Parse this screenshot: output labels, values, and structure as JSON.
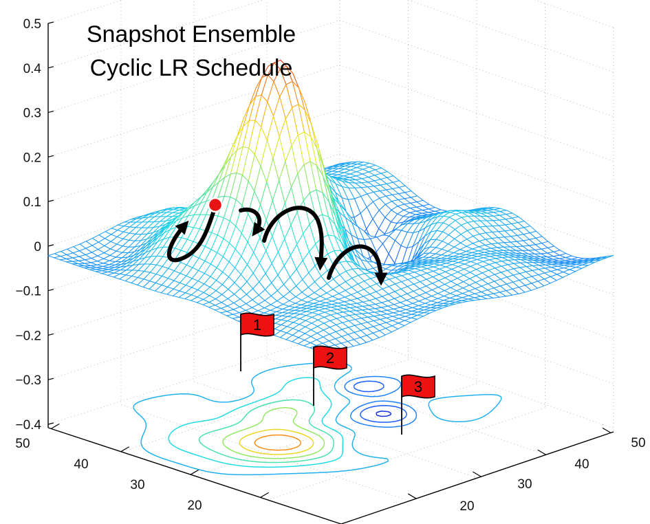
{
  "chart_data": {
    "type": "surface",
    "title": "Snapshot Ensemble",
    "subtitle": "Cyclic LR Schedule",
    "z_ticks": [
      "0.5",
      "0.4",
      "0.3",
      "0.2",
      "0.1",
      "0",
      "−0.1",
      "−0.2",
      "−0.3",
      "−0.4"
    ],
    "zlim": [
      -0.4,
      0.5
    ],
    "x_ticks": [
      "50",
      "40",
      "30",
      "20"
    ],
    "y_ticks": [
      "50",
      "40",
      "30",
      "20"
    ],
    "grid": true,
    "projected_contours": true,
    "flags": [
      {
        "label": "1"
      },
      {
        "label": "2"
      },
      {
        "label": "3"
      }
    ],
    "trajectory": "cyclic learning-rate path hopping between local minima"
  },
  "colors": {
    "low": "#1e3cff",
    "mid": "#24d8d8",
    "high": "#d81e1e",
    "flag": "#ee1111",
    "start_point": "#e81414",
    "arrow": "#000000"
  }
}
